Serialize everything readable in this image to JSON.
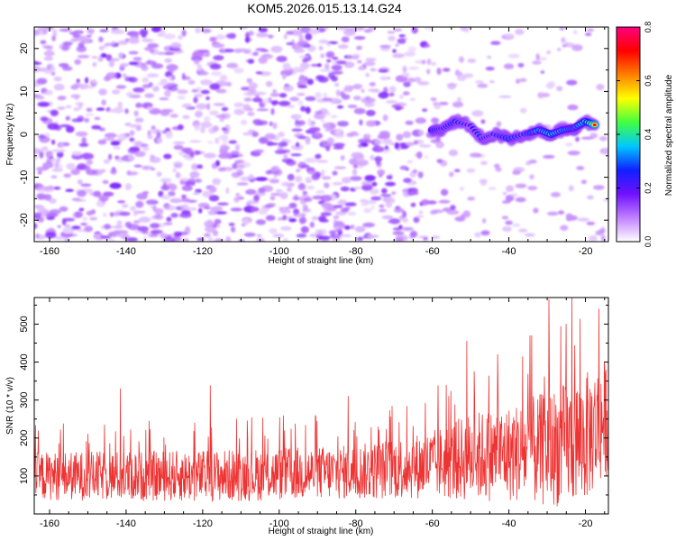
{
  "title": "KOM5.2026.015.13.14.G24",
  "chart_data": [
    {
      "type": "heatmap",
      "title": "KOM5.2026.015.13.14.G24",
      "xlabel": "Height of straight line (km)",
      "ylabel": "Frequency (Hz)",
      "xlim": [
        -164,
        -14
      ],
      "ylim": [
        -25,
        25
      ],
      "xticks": [
        -160,
        -140,
        -120,
        -100,
        -80,
        -60,
        -40,
        -20
      ],
      "yticks": [
        -20,
        -10,
        0,
        10,
        20
      ],
      "colorbar": {
        "label": "Normalized spectral amplitude",
        "range": [
          0.0,
          0.8
        ],
        "ticks": [
          "0.0",
          "0.2",
          "0.4",
          "0.6",
          "0.8"
        ],
        "stops": [
          "#ffffff",
          "#c080ff",
          "#7010ff",
          "#1020ff",
          "#00c8ff",
          "#40ff40",
          "#ffff00",
          "#ff8000",
          "#ff0000",
          "#ff0080"
        ]
      },
      "signal_track": {
        "description": "Strong band from about -60 km to -16 km near 0-5 Hz",
        "points": [
          {
            "x": -60,
            "y": 1.0,
            "amp": 0.35
          },
          {
            "x": -57,
            "y": 1.5,
            "amp": 0.3
          },
          {
            "x": -54,
            "y": 3.0,
            "amp": 0.33
          },
          {
            "x": -50,
            "y": 2.0,
            "amp": 0.25
          },
          {
            "x": -47,
            "y": -1.0,
            "amp": 0.3
          },
          {
            "x": -44,
            "y": 0.0,
            "amp": 0.28
          },
          {
            "x": -40,
            "y": -1.0,
            "amp": 0.35
          },
          {
            "x": -36,
            "y": 0.0,
            "amp": 0.3
          },
          {
            "x": -32,
            "y": 1.0,
            "amp": 0.45
          },
          {
            "x": -29,
            "y": 0.0,
            "amp": 0.5
          },
          {
            "x": -26,
            "y": 1.0,
            "amp": 0.45
          },
          {
            "x": -23,
            "y": 1.5,
            "amp": 0.4
          },
          {
            "x": -20,
            "y": 3.0,
            "amp": 0.5
          },
          {
            "x": -17,
            "y": 2.0,
            "amp": 0.8
          }
        ]
      }
    },
    {
      "type": "line",
      "xlabel": "Height of straight line (km)",
      "ylabel": "SNR (10 * v/v)",
      "xlim": [
        -164,
        -14
      ],
      "ylim": [
        0,
        570
      ],
      "xticks": [
        -160,
        -140,
        -120,
        -100,
        -80,
        -60,
        -40,
        -20
      ],
      "yticks": [
        100,
        200,
        300,
        400,
        500
      ],
      "series": [
        {
          "name": "SNR",
          "color": "#ee3333",
          "baseline": [
            [
              -164,
              100
            ],
            [
              -120,
              100
            ],
            [
              -80,
              110
            ],
            [
              -60,
              130
            ],
            [
              -50,
              150
            ],
            [
              -40,
              160
            ],
            [
              -30,
              170
            ],
            [
              -20,
              200
            ],
            [
              -14,
              260
            ]
          ],
          "spread": [
            [
              -164,
              70
            ],
            [
              -120,
              75
            ],
            [
              -80,
              80
            ],
            [
              -60,
              100
            ],
            [
              -50,
              130
            ],
            [
              -40,
              140
            ],
            [
              -30,
              170
            ],
            [
              -20,
              190
            ],
            [
              -14,
              170
            ]
          ],
          "peaks": [
            {
              "x": -141.5,
              "y": 330
            },
            {
              "x": -118.0,
              "y": 338
            },
            {
              "x": -82.0,
              "y": 310
            },
            {
              "x": -51.0,
              "y": 455
            },
            {
              "x": -43.0,
              "y": 420
            },
            {
              "x": -34.0,
              "y": 470
            },
            {
              "x": -29.5,
              "y": 565
            },
            {
              "x": -25.0,
              "y": 500
            },
            {
              "x": -23.5,
              "y": 568
            },
            {
              "x": -16.5,
              "y": 540
            }
          ]
        }
      ]
    }
  ]
}
